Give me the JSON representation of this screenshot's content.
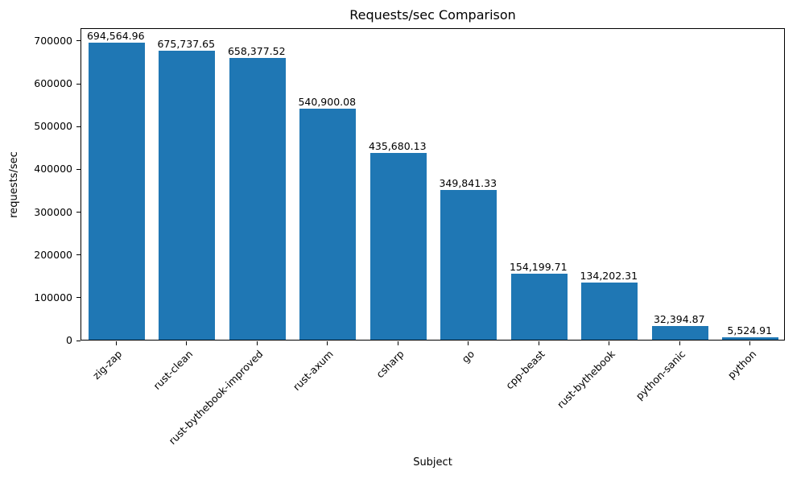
{
  "chart_data": {
    "type": "bar",
    "title": "Requests/sec Comparison",
    "xlabel": "Subject",
    "ylabel": "requests/sec",
    "categories": [
      "zig-zap",
      "rust-clean",
      "rust-bythebook-improved",
      "rust-axum",
      "csharp",
      "go",
      "cpp-beast",
      "rust-bythebook",
      "python-sanic",
      "python"
    ],
    "values": [
      694564.96,
      675737.65,
      658377.52,
      540900.08,
      435680.13,
      349841.33,
      154199.71,
      134202.31,
      32394.87,
      5524.91
    ],
    "value_labels": [
      "694,564.96",
      "675,737.65",
      "658,377.52",
      "540,900.08",
      "435,680.13",
      "349,841.33",
      "154,199.71",
      "134,202.31",
      "32,394.87",
      "5,524.91"
    ],
    "yticks": [
      0,
      100000,
      200000,
      300000,
      400000,
      500000,
      600000,
      700000
    ],
    "ylim": [
      0,
      730000
    ],
    "bar_color": "#1f77b4",
    "text_color": "#000000",
    "grid": false,
    "legend": null,
    "x_tick_rotation_deg": 45,
    "bar_width_fraction": 0.8
  }
}
